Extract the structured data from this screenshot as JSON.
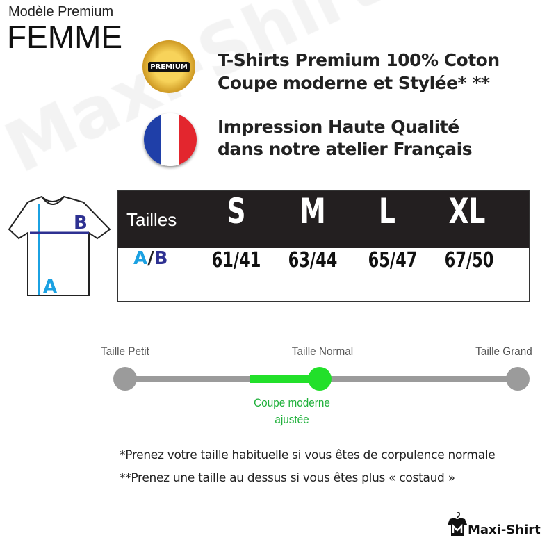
{
  "watermark": "Maxi-Shirt",
  "header": {
    "model": "Modèle Premium",
    "gender": "FEMME"
  },
  "features": [
    {
      "icon": "premium-badge-icon",
      "badge_text": "PREMIUM",
      "lines": [
        "T-Shirts Premium 100% Coton",
        "Coupe moderne et Stylée* **"
      ]
    },
    {
      "icon": "france-flag-icon",
      "lines": [
        "Impression Haute Qualité",
        "dans notre atelier Français"
      ]
    }
  ],
  "diagram": {
    "a": "A",
    "b": "B",
    "colors": {
      "a": "#1ba1e2",
      "b": "#2e3192"
    }
  },
  "size_table": {
    "header_label": "Tailles",
    "row_label_a": "A",
    "row_label_sep": "/",
    "row_label_b": "B",
    "sizes": [
      "S",
      "M",
      "L",
      "XL"
    ],
    "values": [
      "61/41",
      "63/44",
      "65/47",
      "67/50"
    ]
  },
  "fit_scale": {
    "labels": [
      "Taille Petit",
      "Taille Normal",
      "Taille Grand"
    ],
    "selected": "Taille Normal",
    "note_line1": "Coupe moderne",
    "note_line2": "ajustée",
    "accent": "#22c832"
  },
  "notes": [
    "*Prenez votre taille habituelle si vous êtes de corpulence normale",
    "**Prenez une taille au dessus si vous êtes plus « costaud »"
  ],
  "logo": {
    "text": "Maxi-Shirt"
  }
}
